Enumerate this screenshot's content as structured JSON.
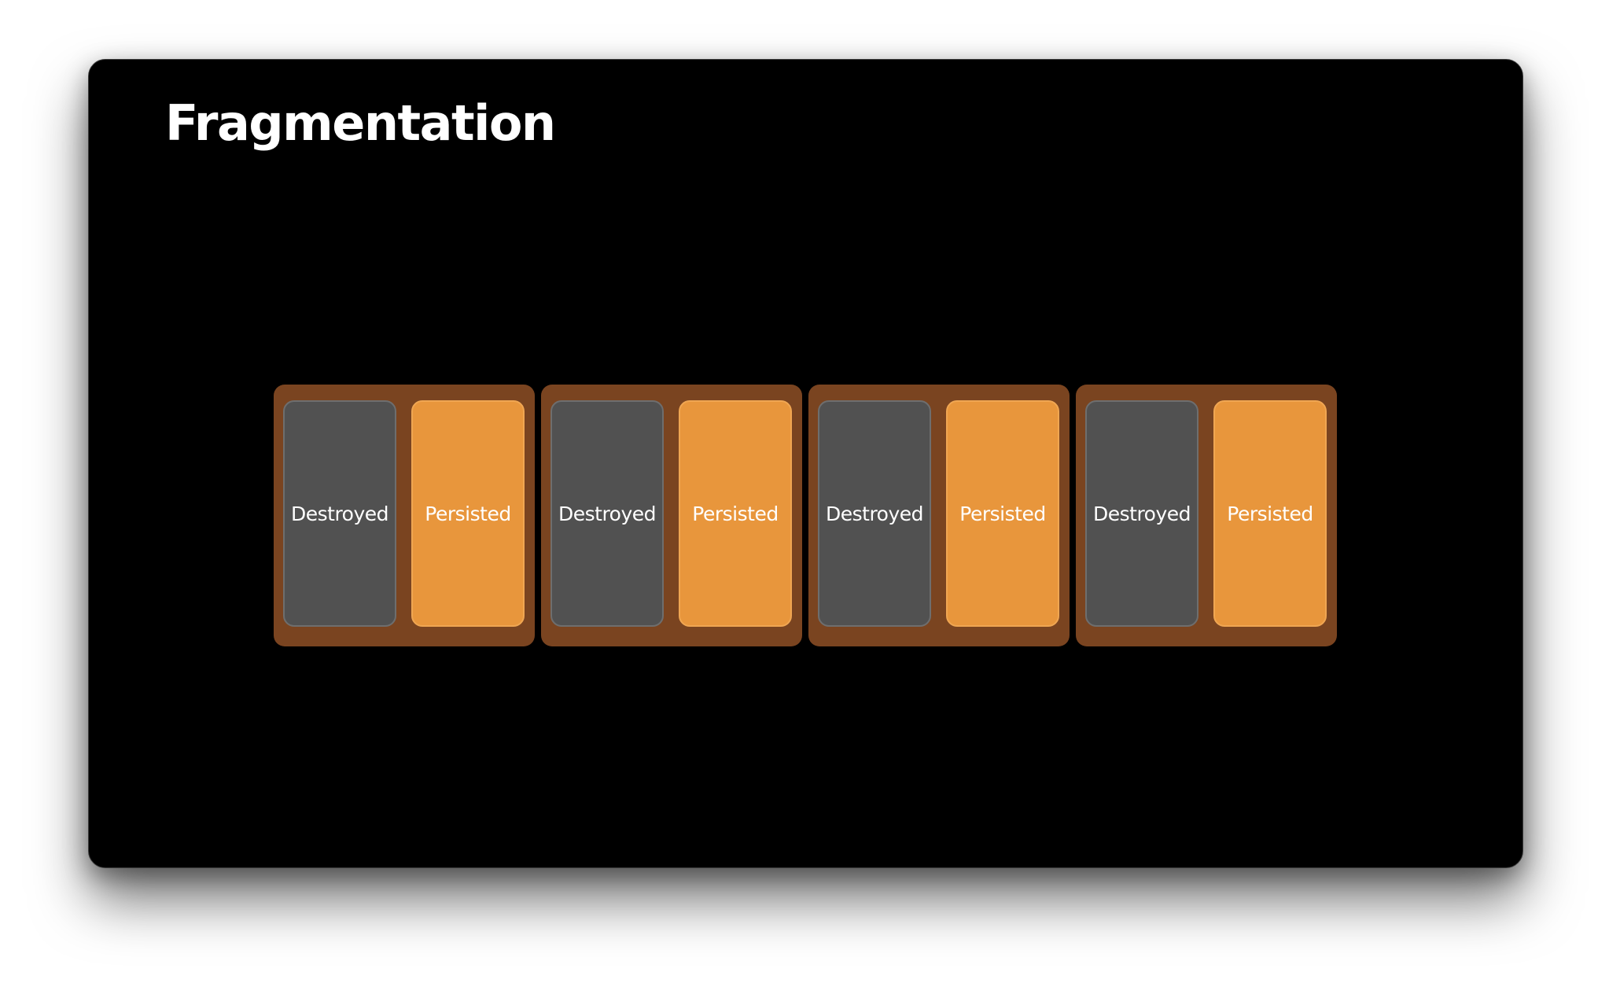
{
  "slide": {
    "title": "Fragmentation"
  },
  "colors": {
    "background": "#000000",
    "group_fill": "#7a4420",
    "destroyed_fill": "#515151",
    "persisted_fill": "#e8963c"
  },
  "groups": [
    {
      "destroyed_label": "Destroyed",
      "persisted_label": "Persisted"
    },
    {
      "destroyed_label": "Destroyed",
      "persisted_label": "Persisted"
    },
    {
      "destroyed_label": "Destroyed",
      "persisted_label": "Persisted"
    },
    {
      "destroyed_label": "Destroyed",
      "persisted_label": "Persisted"
    }
  ]
}
